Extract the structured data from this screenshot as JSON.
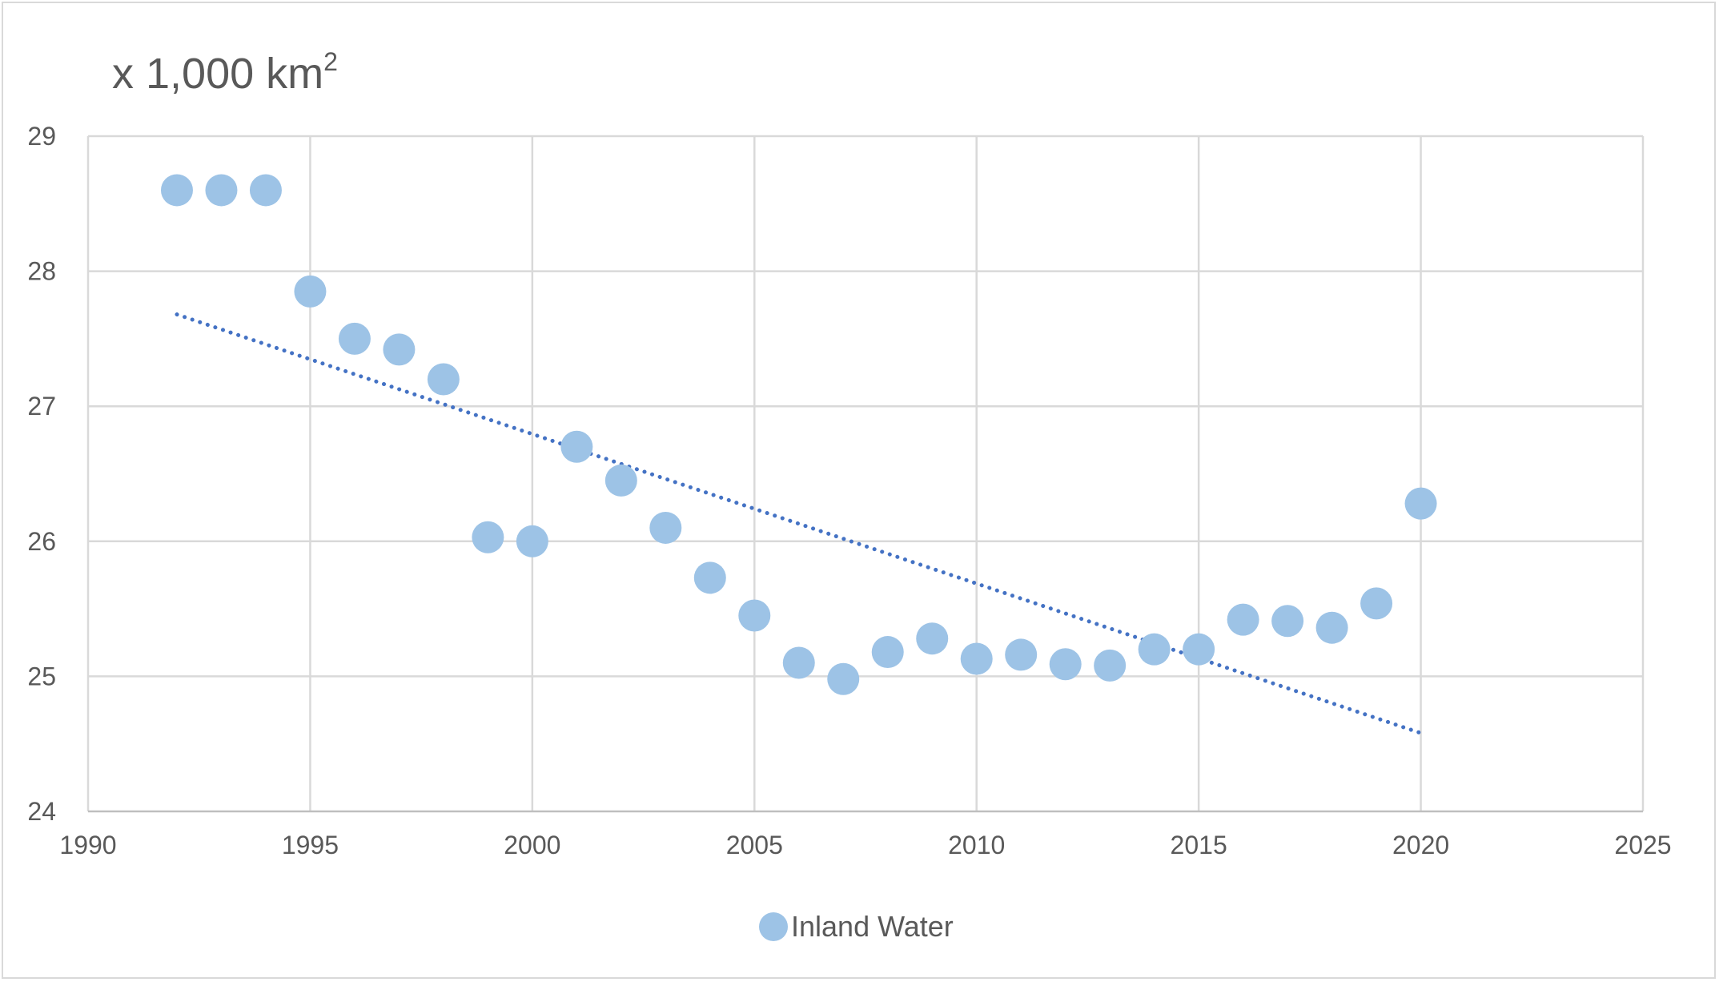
{
  "chart_data": {
    "type": "scatter",
    "title": "",
    "unit_label": {
      "main": "x 1,000 km",
      "superscript": "2"
    },
    "xlabel": "",
    "ylabel": "",
    "xlim": [
      1990,
      2025
    ],
    "ylim": [
      24,
      29
    ],
    "x_ticks": [
      "1990",
      "1995",
      "2000",
      "2005",
      "2010",
      "2015",
      "2020",
      "2025"
    ],
    "y_ticks": [
      "24",
      "25",
      "26",
      "27",
      "28",
      "29"
    ],
    "grid": true,
    "legend_position": "bottom",
    "series": [
      {
        "name": "Inland Water",
        "color": "#9dc3e6",
        "points": [
          {
            "x": 1992,
            "y": 28.6
          },
          {
            "x": 1993,
            "y": 28.6
          },
          {
            "x": 1994,
            "y": 28.6
          },
          {
            "x": 1995,
            "y": 27.85
          },
          {
            "x": 1996,
            "y": 27.5
          },
          {
            "x": 1997,
            "y": 27.42
          },
          {
            "x": 1998,
            "y": 27.2
          },
          {
            "x": 1999,
            "y": 26.03
          },
          {
            "x": 2000,
            "y": 26.0
          },
          {
            "x": 2001,
            "y": 26.7
          },
          {
            "x": 2002,
            "y": 26.45
          },
          {
            "x": 2003,
            "y": 26.1
          },
          {
            "x": 2004,
            "y": 25.73
          },
          {
            "x": 2005,
            "y": 25.45
          },
          {
            "x": 2006,
            "y": 25.1
          },
          {
            "x": 2007,
            "y": 24.98
          },
          {
            "x": 2008,
            "y": 25.18
          },
          {
            "x": 2009,
            "y": 25.28
          },
          {
            "x": 2010,
            "y": 25.13
          },
          {
            "x": 2011,
            "y": 25.16
          },
          {
            "x": 2012,
            "y": 25.09
          },
          {
            "x": 2013,
            "y": 25.08
          },
          {
            "x": 2014,
            "y": 25.2
          },
          {
            "x": 2015,
            "y": 25.2
          },
          {
            "x": 2016,
            "y": 25.42
          },
          {
            "x": 2017,
            "y": 25.41
          },
          {
            "x": 2018,
            "y": 25.36
          },
          {
            "x": 2019,
            "y": 25.54
          },
          {
            "x": 2020,
            "y": 26.28
          }
        ]
      }
    ],
    "trendline": {
      "type": "linear",
      "style": "dotted",
      "color": "#4472c4",
      "start": {
        "x": 1992,
        "y": 27.68
      },
      "end": {
        "x": 2020,
        "y": 24.58
      }
    }
  }
}
